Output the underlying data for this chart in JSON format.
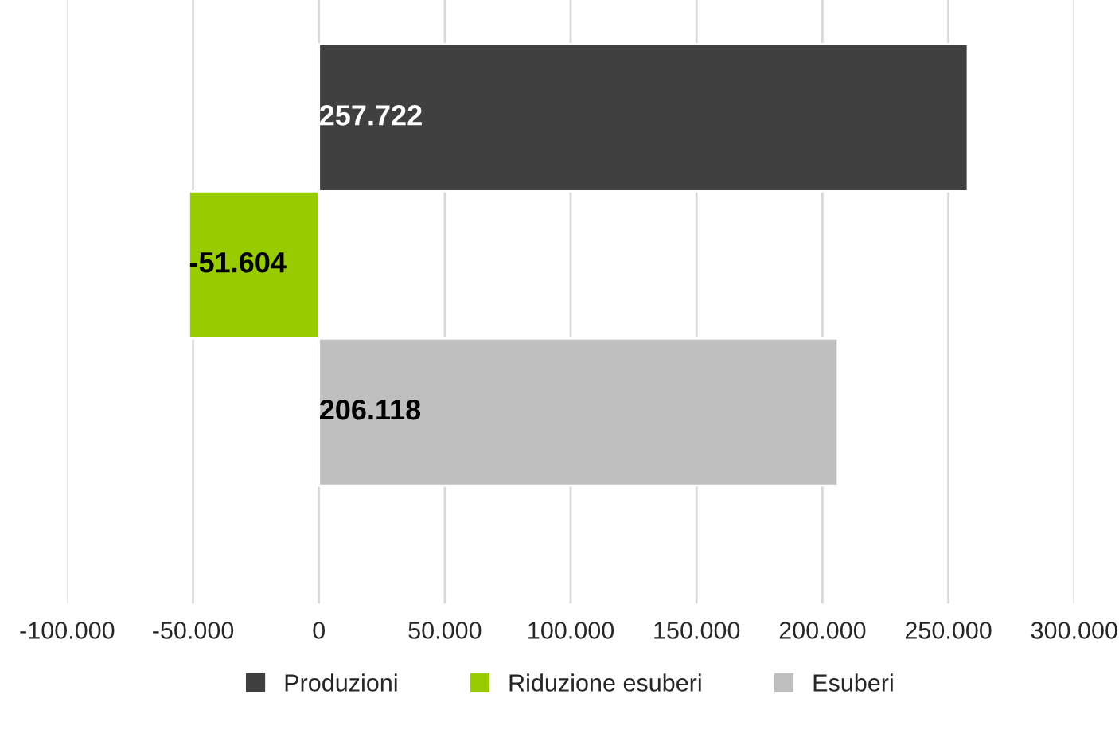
{
  "chart_data": {
    "type": "bar",
    "orientation": "horizontal",
    "categories": [
      null,
      null,
      null
    ],
    "series": [
      {
        "name": "Produzioni",
        "color": "#404040",
        "values": [
          257722,
          null,
          null
        ],
        "value_labels": [
          "257.722",
          null,
          null
        ]
      },
      {
        "name": "Riduzione esuberi",
        "color": "#99cc00",
        "values": [
          null,
          -51604,
          null
        ],
        "value_labels": [
          null,
          "-51.604",
          null
        ]
      },
      {
        "name": "Esuberi",
        "color": "#bfbfbf",
        "values": [
          null,
          null,
          206118
        ],
        "value_labels": [
          null,
          null,
          "206.118"
        ]
      }
    ],
    "xlim": [
      -100000,
      300000
    ],
    "xticks": [
      {
        "value": -100000,
        "label": "-100.000"
      },
      {
        "value": -50000,
        "label": "-50.000"
      },
      {
        "value": 0,
        "label": "0"
      },
      {
        "value": 50000,
        "label": "50.000"
      },
      {
        "value": 100000,
        "label": "100.000"
      },
      {
        "value": 150000,
        "label": "150.000"
      },
      {
        "value": 200000,
        "label": "200.000"
      },
      {
        "value": 250000,
        "label": "250.000"
      },
      {
        "value": 300000,
        "label": "300.000"
      }
    ],
    "grid": "x",
    "legend": "bottom"
  }
}
